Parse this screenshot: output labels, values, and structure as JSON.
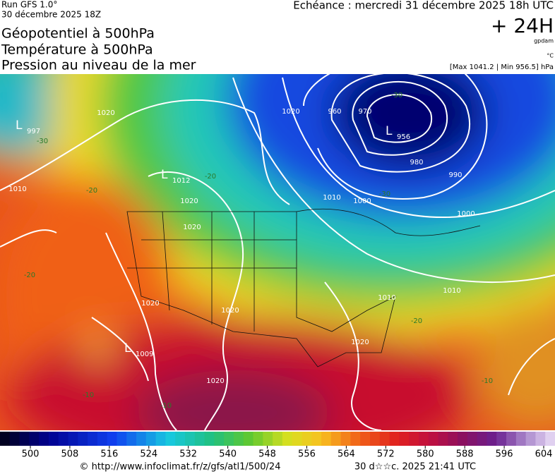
{
  "header": {
    "run": "Run GFS 1.0°",
    "date": "30 décembre 2025 18Z",
    "titles": [
      "Géopotentiel à 500hPa",
      "Température à 500hPa",
      "Pression au niveau de la mer"
    ],
    "echeance": "Echéance : mercredi 31 décembre 2025 18h UTC",
    "lead": "+ 24H",
    "unit_geo": "gpdam",
    "unit_temp": "°C",
    "range": "[Max 1041.2 | Min 956.5] hPa"
  },
  "map": {
    "lows": [
      {
        "label": "L",
        "value": 997
      },
      {
        "label": "L",
        "value": 1012
      },
      {
        "label": "L",
        "value": 1009
      },
      {
        "label": "L",
        "value": 956
      }
    ],
    "isobars": [
      1020,
      1020,
      1020,
      1020,
      1020,
      1020,
      1020,
      1020,
      990,
      980,
      970,
      960,
      1000,
      1000,
      1010,
      1010,
      1010,
      1010
    ],
    "isotherms": [
      -30,
      -30,
      -30,
      -20,
      -20,
      -20,
      -20,
      -10,
      -10,
      -10
    ]
  },
  "colorbar": {
    "ticks": [
      500,
      508,
      516,
      524,
      532,
      540,
      548,
      556,
      564,
      572,
      580,
      588,
      596,
      604
    ]
  },
  "footer": {
    "url": "© http://www.infoclimat.fr/z/gfs/atl1/500/24",
    "timestamp": "30 d☆☆c. 2025 21:41 UTC"
  }
}
